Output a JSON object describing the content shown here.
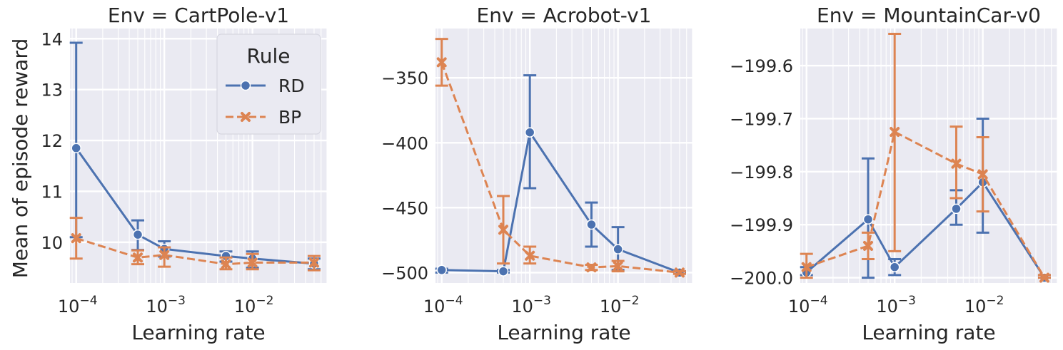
{
  "figure": {
    "ylabel": "Mean of episode reward",
    "xlabel": "Learning rate",
    "legend": {
      "title": "Rule",
      "entries": [
        {
          "name": "RD",
          "color": "#4c72b0",
          "marker": "circle",
          "dash": "solid"
        },
        {
          "name": "BP",
          "color": "#dd8452",
          "marker": "x",
          "dash": "dashed"
        }
      ]
    }
  },
  "chart_data": [
    {
      "type": "line",
      "title": "Env = CartPole-v1",
      "x_scale": "log",
      "xlim": [
        8.5e-05,
        0.07
      ],
      "ylim": [
        9.2,
        14.2
      ],
      "yticks": [
        10,
        11,
        12,
        13,
        14
      ],
      "ytick_labels": [
        "10",
        "11",
        "12",
        "13",
        "14"
      ],
      "xticks": [
        0.0001,
        0.001,
        0.01
      ],
      "xtick_labels": [
        "10",
        "10",
        "10"
      ],
      "xtick_exponents": [
        "−4",
        "−3",
        "−2"
      ],
      "legend": "top-right",
      "x": [
        0.0001,
        0.0005,
        0.001,
        0.005,
        0.01,
        0.05
      ],
      "series": [
        {
          "name": "RD",
          "values": [
            11.85,
            10.15,
            9.87,
            9.73,
            9.68,
            9.58
          ],
          "err_low": [
            10.1,
            9.85,
            9.72,
            9.62,
            9.5,
            9.47
          ],
          "err_high": [
            13.92,
            10.43,
            10.02,
            9.82,
            9.82,
            9.68
          ]
        },
        {
          "name": "BP",
          "values": [
            10.08,
            9.7,
            9.75,
            9.57,
            9.6,
            9.6
          ],
          "err_low": [
            9.68,
            9.57,
            9.52,
            9.47,
            9.47,
            9.45
          ],
          "err_high": [
            10.48,
            9.84,
            9.9,
            9.7,
            9.77,
            9.73
          ]
        }
      ]
    },
    {
      "type": "line",
      "title": "Env = Acrobot-v1",
      "x_scale": "log",
      "xlim": [
        8.5e-05,
        0.07
      ],
      "ylim": [
        -508,
        -312
      ],
      "yticks": [
        -350,
        -400,
        -450,
        -500
      ],
      "ytick_labels": [
        "−350",
        "−400",
        "−450",
        "−500"
      ],
      "xticks": [
        0.0001,
        0.001,
        0.01
      ],
      "xtick_labels": [
        "10",
        "10",
        "10"
      ],
      "xtick_exponents": [
        "−4",
        "−3",
        "−2"
      ],
      "x": [
        0.0001,
        0.0005,
        0.001,
        0.005,
        0.01,
        0.05
      ],
      "series": [
        {
          "name": "RD",
          "values": [
            -498,
            -499,
            -392,
            -463,
            -482,
            -500
          ],
          "err_low": [
            -500,
            -500,
            -435,
            -480,
            -498,
            -500
          ],
          "err_high": [
            -497,
            -498,
            -348,
            -446,
            -465,
            -499
          ]
        },
        {
          "name": "BP",
          "values": [
            -338,
            -467,
            -487,
            -496,
            -495,
            -500
          ],
          "err_low": [
            -356,
            -493,
            -493,
            -498,
            -499,
            -501
          ],
          "err_high": [
            -320,
            -441,
            -480,
            -494,
            -491,
            -499
          ]
        }
      ]
    },
    {
      "type": "line",
      "title": "Env = MountainCar-v0",
      "x_scale": "log",
      "xlim": [
        8.5e-05,
        0.07
      ],
      "ylim": [
        -200.01,
        -199.53
      ],
      "yticks": [
        -199.6,
        -199.7,
        -199.8,
        -199.9,
        -200.0
      ],
      "ytick_labels": [
        "−199.6",
        "−199.7",
        "−199.8",
        "−199.9",
        "−200.0"
      ],
      "xticks": [
        0.0001,
        0.001,
        0.01
      ],
      "xtick_labels": [
        "10",
        "10",
        "10"
      ],
      "xtick_exponents": [
        "−4",
        "−3",
        "−2"
      ],
      "x": [
        0.0001,
        0.0005,
        0.001,
        0.005,
        0.01,
        0.05
      ],
      "series": [
        {
          "name": "RD",
          "values": [
            -199.99,
            -199.89,
            -199.98,
            -199.87,
            -199.82,
            -200.0
          ],
          "err_low": [
            -199.995,
            -200.0,
            -199.995,
            -199.9,
            -199.915,
            -200.0
          ],
          "err_high": [
            -199.98,
            -199.775,
            -199.965,
            -199.835,
            -199.7,
            -199.995
          ]
        },
        {
          "name": "BP",
          "values": [
            -199.98,
            -199.94,
            -199.725,
            -199.785,
            -199.805,
            -200.0
          ],
          "err_low": [
            -200.0,
            -199.965,
            -199.95,
            -199.85,
            -199.875,
            -200.0
          ],
          "err_high": [
            -199.955,
            -199.915,
            -199.54,
            -199.715,
            -199.735,
            -199.995
          ]
        }
      ]
    }
  ]
}
